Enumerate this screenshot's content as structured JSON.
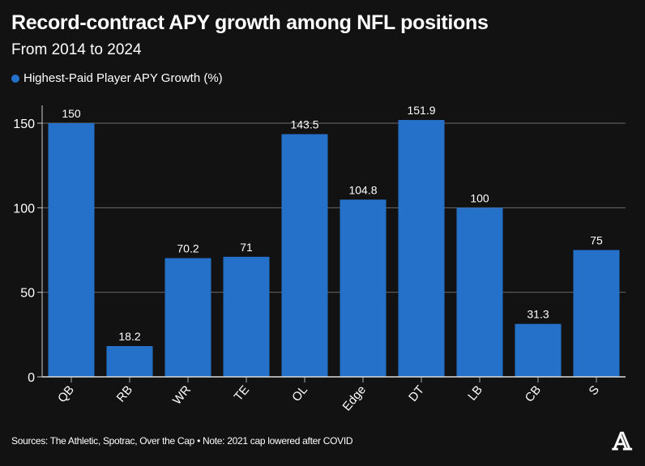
{
  "chart_data": {
    "type": "bar",
    "title": "Record-contract APY growth among NFL positions",
    "subtitle": "From 2014 to 2024",
    "legend": "Highest-Paid Player APY Growth (%)",
    "categories": [
      "QB",
      "RB",
      "WR",
      "TE",
      "OL",
      "Edge",
      "DT",
      "LB",
      "CB",
      "S"
    ],
    "series": [
      {
        "name": "Highest-Paid Player APY Growth (%)",
        "values": [
          150,
          18.2,
          70.2,
          71,
          143.5,
          104.8,
          151.9,
          100,
          31.3,
          75
        ],
        "labels": [
          "150",
          "18.2",
          "70.2",
          "71",
          "143.5",
          "104.8",
          "151.9",
          "100",
          "31.3",
          "75"
        ]
      }
    ],
    "yticks": [
      0,
      50,
      100,
      150
    ],
    "ylim": [
      0,
      160
    ],
    "grid": true,
    "legend_placement": "top-left",
    "bar_color": "#2570c9",
    "background": "#121212"
  },
  "footer": {
    "source": "Sources: The Athletic, Spotrac, Over the Cap • Note: 2021 cap lowered after COVID",
    "logo": "A"
  }
}
